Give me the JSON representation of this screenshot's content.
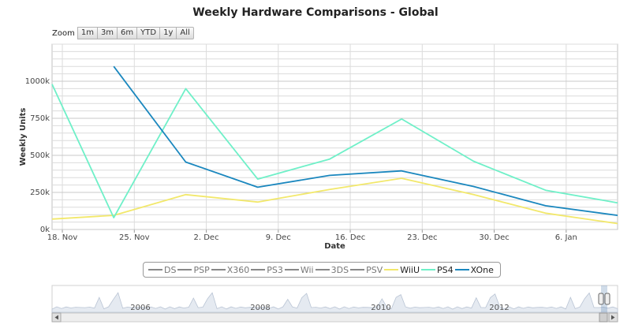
{
  "title": "Weekly Hardware Comparisons - Global",
  "zoom": {
    "label": "Zoom",
    "buttons": [
      "1m",
      "3m",
      "6m",
      "YTD",
      "1y",
      "All"
    ]
  },
  "colors": {
    "WiiU": "#f2e86b",
    "PS4": "#6ff0c8",
    "XOne": "#1a87be",
    "inactive": "#888888",
    "grid": "#dcdcdc",
    "navigator_fill": "#e5eaf1"
  },
  "legend": [
    {
      "name": "DS",
      "active": false
    },
    {
      "name": "PSP",
      "active": false
    },
    {
      "name": "X360",
      "active": false
    },
    {
      "name": "PS3",
      "active": false
    },
    {
      "name": "Wii",
      "active": false
    },
    {
      "name": "3DS",
      "active": false
    },
    {
      "name": "PSV",
      "active": false
    },
    {
      "name": "WiiU",
      "active": true
    },
    {
      "name": "PS4",
      "active": true
    },
    {
      "name": "XOne",
      "active": true
    }
  ],
  "navigator": {
    "year_labels": [
      "2006",
      "2008",
      "2010",
      "2012"
    ]
  },
  "chart_data": {
    "type": "line",
    "title": "Weekly Hardware Comparisons - Global",
    "xlabel": "Date",
    "ylabel": "Weekly Units",
    "x_ticks": [
      "18. Nov",
      "25. Nov",
      "2. Dec",
      "9. Dec",
      "16. Dec",
      "23. Dec",
      "30. Dec",
      "6. Jan"
    ],
    "y_ticks": [
      "0k",
      "250k",
      "500k",
      "750k",
      "1000k"
    ],
    "ylim": [
      0,
      1250000
    ],
    "x_range": [
      "2013-11-17",
      "2014-01-11"
    ],
    "grid": true,
    "legend_placement": "bottom",
    "series": [
      {
        "name": "WiiU",
        "points": [
          {
            "x": "2013-11-17",
            "y": 70000
          },
          {
            "x": "2013-11-23",
            "y": 95000
          },
          {
            "x": "2013-11-30",
            "y": 235000
          },
          {
            "x": "2013-12-07",
            "y": 185000
          },
          {
            "x": "2013-12-14",
            "y": 270000
          },
          {
            "x": "2013-12-21",
            "y": 345000
          },
          {
            "x": "2013-12-28",
            "y": 235000
          },
          {
            "x": "2014-01-04",
            "y": 110000
          },
          {
            "x": "2014-01-11",
            "y": 40000
          }
        ]
      },
      {
        "name": "PS4",
        "points": [
          {
            "x": "2013-11-17",
            "y": 980000
          },
          {
            "x": "2013-11-23",
            "y": 80000
          },
          {
            "x": "2013-11-30",
            "y": 950000
          },
          {
            "x": "2013-12-07",
            "y": 340000
          },
          {
            "x": "2013-12-14",
            "y": 475000
          },
          {
            "x": "2013-12-21",
            "y": 745000
          },
          {
            "x": "2013-12-28",
            "y": 460000
          },
          {
            "x": "2014-01-04",
            "y": 265000
          },
          {
            "x": "2014-01-11",
            "y": 180000
          }
        ]
      },
      {
        "name": "XOne",
        "points": [
          {
            "x": "2013-11-23",
            "y": 1100000
          },
          {
            "x": "2013-11-30",
            "y": 455000
          },
          {
            "x": "2013-12-07",
            "y": 285000
          },
          {
            "x": "2013-12-14",
            "y": 365000
          },
          {
            "x": "2013-12-21",
            "y": 395000
          },
          {
            "x": "2013-12-28",
            "y": 290000
          },
          {
            "x": "2014-01-04",
            "y": 160000
          },
          {
            "x": "2014-01-11",
            "y": 95000
          }
        ]
      }
    ]
  }
}
